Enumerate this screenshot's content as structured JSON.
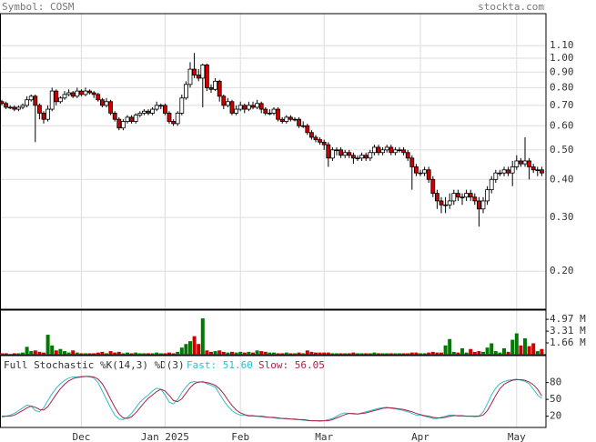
{
  "chart_data": {
    "type": "candlestick",
    "symbol_label": "Symbol: COSM",
    "source": "stockta.com",
    "log_scale": true,
    "grid": true,
    "up_color": "#ffffff",
    "down_color": "#cc0000",
    "volume_up_color": "#007a00",
    "volume_down_color": "#cc0000",
    "ylim": [
      0.15,
      1.4
    ],
    "yticks": [
      {
        "value": 1.1,
        "label": "1.10"
      },
      {
        "value": 1.0,
        "label": "1.00"
      },
      {
        "value": 0.9,
        "label": "0.90"
      },
      {
        "value": 0.8,
        "label": "0.80"
      },
      {
        "value": 0.7,
        "label": "0.70"
      },
      {
        "value": 0.6,
        "label": "0.60"
      },
      {
        "value": 0.5,
        "label": "0.50"
      },
      {
        "value": 0.4,
        "label": "0.40"
      },
      {
        "value": 0.3,
        "label": "0.30"
      },
      {
        "value": 0.2,
        "label": "0.20"
      }
    ],
    "categories": [
      null,
      null,
      null,
      null,
      null,
      null,
      null,
      null,
      null,
      null,
      null,
      null,
      null,
      null,
      null,
      null,
      null,
      null,
      null,
      "Dec",
      null,
      null,
      null,
      null,
      null,
      null,
      null,
      null,
      null,
      null,
      null,
      null,
      null,
      null,
      null,
      null,
      null,
      null,
      null,
      "Jan 2025",
      null,
      null,
      null,
      null,
      null,
      null,
      null,
      null,
      null,
      null,
      null,
      null,
      null,
      null,
      null,
      null,
      null,
      "Feb",
      null,
      null,
      null,
      null,
      null,
      null,
      null,
      null,
      null,
      null,
      null,
      null,
      null,
      null,
      null,
      null,
      null,
      null,
      null,
      "Mar",
      null,
      null,
      null,
      null,
      null,
      null,
      null,
      null,
      null,
      null,
      null,
      null,
      null,
      null,
      null,
      null,
      null,
      null,
      null,
      null,
      null,
      null,
      "Apr",
      null,
      null,
      null,
      null,
      null,
      null,
      null,
      null,
      null,
      null,
      null,
      null,
      null,
      null,
      null,
      null,
      null,
      null,
      null,
      null,
      null,
      null,
      "May",
      null,
      null,
      null,
      null,
      null,
      null
    ],
    "ohlc": [
      [
        0.72,
        0.73,
        0.7,
        0.71
      ],
      [
        0.71,
        0.72,
        0.68,
        0.69
      ],
      [
        0.69,
        0.7,
        0.68,
        0.69
      ],
      [
        0.69,
        0.7,
        0.67,
        0.68
      ],
      [
        0.68,
        0.7,
        0.67,
        0.69
      ],
      [
        0.69,
        0.71,
        0.68,
        0.7
      ],
      [
        0.7,
        0.75,
        0.69,
        0.73
      ],
      [
        0.73,
        0.76,
        0.72,
        0.75
      ],
      [
        0.75,
        0.76,
        0.53,
        0.7
      ],
      [
        0.7,
        0.71,
        0.63,
        0.66
      ],
      [
        0.66,
        0.67,
        0.61,
        0.63
      ],
      [
        0.63,
        0.7,
        0.62,
        0.68
      ],
      [
        0.68,
        0.8,
        0.67,
        0.78
      ],
      [
        0.78,
        0.79,
        0.7,
        0.72
      ],
      [
        0.72,
        0.75,
        0.71,
        0.74
      ],
      [
        0.74,
        0.78,
        0.73,
        0.76
      ],
      [
        0.76,
        0.79,
        0.75,
        0.77
      ],
      [
        0.77,
        0.78,
        0.74,
        0.75
      ],
      [
        0.75,
        0.8,
        0.74,
        0.78
      ],
      [
        0.78,
        0.79,
        0.75,
        0.76
      ],
      [
        0.76,
        0.8,
        0.75,
        0.78
      ],
      [
        0.78,
        0.79,
        0.76,
        0.77
      ],
      [
        0.77,
        0.78,
        0.74,
        0.76
      ],
      [
        0.76,
        0.77,
        0.72,
        0.73
      ],
      [
        0.73,
        0.74,
        0.69,
        0.7
      ],
      [
        0.7,
        0.74,
        0.69,
        0.72
      ],
      [
        0.72,
        0.73,
        0.65,
        0.66
      ],
      [
        0.66,
        0.67,
        0.62,
        0.63
      ],
      [
        0.63,
        0.64,
        0.58,
        0.59
      ],
      [
        0.59,
        0.63,
        0.58,
        0.62
      ],
      [
        0.62,
        0.65,
        0.61,
        0.64
      ],
      [
        0.64,
        0.65,
        0.61,
        0.62
      ],
      [
        0.62,
        0.66,
        0.61,
        0.65
      ],
      [
        0.65,
        0.67,
        0.64,
        0.66
      ],
      [
        0.66,
        0.68,
        0.65,
        0.67
      ],
      [
        0.67,
        0.68,
        0.65,
        0.66
      ],
      [
        0.66,
        0.69,
        0.65,
        0.68
      ],
      [
        0.68,
        0.72,
        0.67,
        0.7
      ],
      [
        0.7,
        0.71,
        0.68,
        0.7
      ],
      [
        0.7,
        0.71,
        0.65,
        0.66
      ],
      [
        0.66,
        0.67,
        0.61,
        0.62
      ],
      [
        0.62,
        0.63,
        0.6,
        0.61
      ],
      [
        0.61,
        0.67,
        0.6,
        0.66
      ],
      [
        0.66,
        0.76,
        0.65,
        0.74
      ],
      [
        0.74,
        0.84,
        0.73,
        0.82
      ],
      [
        0.82,
        0.97,
        0.8,
        0.92
      ],
      [
        0.92,
        1.04,
        0.86,
        0.88
      ],
      [
        0.88,
        0.92,
        0.84,
        0.86
      ],
      [
        0.86,
        0.96,
        0.69,
        0.95
      ],
      [
        0.95,
        0.96,
        0.78,
        0.8
      ],
      [
        0.8,
        0.82,
        0.77,
        0.79
      ],
      [
        0.79,
        0.86,
        0.78,
        0.84
      ],
      [
        0.84,
        0.85,
        0.72,
        0.75
      ],
      [
        0.75,
        0.76,
        0.68,
        0.7
      ],
      [
        0.7,
        0.74,
        0.69,
        0.72
      ],
      [
        0.72,
        0.73,
        0.65,
        0.66
      ],
      [
        0.66,
        0.7,
        0.65,
        0.68
      ],
      [
        0.68,
        0.72,
        0.67,
        0.7
      ],
      [
        0.7,
        0.71,
        0.66,
        0.68
      ],
      [
        0.68,
        0.72,
        0.67,
        0.7
      ],
      [
        0.7,
        0.72,
        0.68,
        0.69
      ],
      [
        0.69,
        0.73,
        0.68,
        0.71
      ],
      [
        0.71,
        0.72,
        0.66,
        0.68
      ],
      [
        0.68,
        0.69,
        0.65,
        0.66
      ],
      [
        0.66,
        0.68,
        0.65,
        0.66
      ],
      [
        0.66,
        0.69,
        0.65,
        0.68
      ],
      [
        0.68,
        0.69,
        0.62,
        0.63
      ],
      [
        0.63,
        0.64,
        0.61,
        0.62
      ],
      [
        0.62,
        0.65,
        0.61,
        0.64
      ],
      [
        0.64,
        0.65,
        0.62,
        0.63
      ],
      [
        0.63,
        0.64,
        0.62,
        0.63
      ],
      [
        0.63,
        0.64,
        0.59,
        0.6
      ],
      [
        0.6,
        0.62,
        0.59,
        0.6
      ],
      [
        0.6,
        0.61,
        0.56,
        0.57
      ],
      [
        0.57,
        0.58,
        0.54,
        0.55
      ],
      [
        0.55,
        0.56,
        0.53,
        0.54
      ],
      [
        0.54,
        0.55,
        0.52,
        0.53
      ],
      [
        0.53,
        0.54,
        0.5,
        0.52
      ],
      [
        0.52,
        0.53,
        0.44,
        0.47
      ],
      [
        0.47,
        0.51,
        0.46,
        0.5
      ],
      [
        0.5,
        0.51,
        0.48,
        0.5
      ],
      [
        0.5,
        0.51,
        0.47,
        0.48
      ],
      [
        0.48,
        0.5,
        0.47,
        0.49
      ],
      [
        0.49,
        0.5,
        0.47,
        0.48
      ],
      [
        0.48,
        0.49,
        0.45,
        0.47
      ],
      [
        0.47,
        0.48,
        0.46,
        0.47
      ],
      [
        0.47,
        0.49,
        0.46,
        0.48
      ],
      [
        0.48,
        0.49,
        0.46,
        0.47
      ],
      [
        0.47,
        0.5,
        0.46,
        0.49
      ],
      [
        0.49,
        0.52,
        0.48,
        0.51
      ],
      [
        0.51,
        0.52,
        0.48,
        0.49
      ],
      [
        0.49,
        0.51,
        0.48,
        0.5
      ],
      [
        0.5,
        0.52,
        0.49,
        0.51
      ],
      [
        0.51,
        0.52,
        0.48,
        0.49
      ],
      [
        0.49,
        0.51,
        0.48,
        0.5
      ],
      [
        0.5,
        0.51,
        0.49,
        0.5
      ],
      [
        0.5,
        0.51,
        0.48,
        0.49
      ],
      [
        0.49,
        0.5,
        0.46,
        0.47
      ],
      [
        0.47,
        0.48,
        0.37,
        0.44
      ],
      [
        0.44,
        0.45,
        0.41,
        0.42
      ],
      [
        0.42,
        0.43,
        0.41,
        0.42
      ],
      [
        0.42,
        0.44,
        0.41,
        0.43
      ],
      [
        0.43,
        0.44,
        0.39,
        0.4
      ],
      [
        0.4,
        0.41,
        0.35,
        0.36
      ],
      [
        0.36,
        0.37,
        0.32,
        0.34
      ],
      [
        0.34,
        0.35,
        0.31,
        0.33
      ],
      [
        0.33,
        0.35,
        0.31,
        0.33
      ],
      [
        0.33,
        0.36,
        0.32,
        0.34
      ],
      [
        0.34,
        0.37,
        0.33,
        0.36
      ],
      [
        0.36,
        0.37,
        0.34,
        0.35
      ],
      [
        0.35,
        0.36,
        0.33,
        0.35
      ],
      [
        0.35,
        0.37,
        0.34,
        0.36
      ],
      [
        0.36,
        0.37,
        0.34,
        0.35
      ],
      [
        0.35,
        0.36,
        0.33,
        0.34
      ],
      [
        0.34,
        0.35,
        0.28,
        0.32
      ],
      [
        0.32,
        0.35,
        0.31,
        0.34
      ],
      [
        0.34,
        0.38,
        0.33,
        0.37
      ],
      [
        0.37,
        0.41,
        0.36,
        0.4
      ],
      [
        0.4,
        0.43,
        0.39,
        0.42
      ],
      [
        0.42,
        0.43,
        0.41,
        0.42
      ],
      [
        0.42,
        0.44,
        0.41,
        0.43
      ],
      [
        0.43,
        0.44,
        0.41,
        0.42
      ],
      [
        0.42,
        0.46,
        0.38,
        0.44
      ],
      [
        0.44,
        0.48,
        0.43,
        0.46
      ],
      [
        0.46,
        0.47,
        0.44,
        0.45
      ],
      [
        0.45,
        0.55,
        0.44,
        0.46
      ],
      [
        0.46,
        0.47,
        0.4,
        0.44
      ],
      [
        0.44,
        0.45,
        0.42,
        0.43
      ],
      [
        0.43,
        0.44,
        0.41,
        0.43
      ],
      [
        0.43,
        0.44,
        0.41,
        0.42
      ]
    ],
    "volume": {
      "ylim": [
        0,
        6.26
      ],
      "yticks": [
        {
          "value": 4.97,
          "label": "4.97 M"
        },
        {
          "value": 3.31,
          "label": "3.31 M"
        },
        {
          "value": 1.66,
          "label": "1.66 M"
        }
      ],
      "values": [
        0.2,
        0.2,
        0.1,
        0.2,
        0.2,
        0.3,
        1.1,
        0.5,
        0.6,
        0.4,
        0.3,
        2.8,
        1.3,
        0.6,
        0.8,
        0.5,
        0.3,
        0.6,
        0.3,
        0.2,
        0.2,
        0.2,
        0.2,
        0.3,
        0.4,
        0.2,
        0.5,
        0.3,
        0.4,
        0.2,
        0.3,
        0.2,
        0.3,
        0.2,
        0.2,
        0.2,
        0.2,
        0.3,
        0.2,
        0.2,
        0.3,
        0.2,
        0.4,
        1.0,
        1.5,
        1.9,
        2.6,
        1.5,
        5.1,
        0.6,
        0.4,
        0.5,
        0.6,
        0.4,
        0.3,
        0.4,
        0.3,
        0.4,
        0.3,
        0.4,
        0.3,
        0.6,
        0.5,
        0.4,
        0.3,
        0.3,
        0.2,
        0.2,
        0.3,
        0.2,
        0.2,
        0.3,
        0.2,
        0.6,
        0.4,
        0.3,
        0.3,
        0.3,
        0.3,
        0.2,
        0.2,
        0.2,
        0.2,
        0.2,
        0.3,
        0.2,
        0.2,
        0.2,
        0.2,
        0.3,
        0.2,
        0.2,
        0.2,
        0.2,
        0.2,
        0.2,
        0.2,
        0.2,
        0.3,
        0.3,
        0.2,
        0.2,
        0.3,
        0.4,
        0.3,
        0.3,
        1.3,
        2.2,
        0.4,
        0.3,
        0.9,
        0.3,
        0.8,
        0.4,
        0.5,
        0.4,
        1.0,
        1.6,
        0.5,
        0.3,
        0.9,
        0.4,
        2.1,
        3.0,
        1.3,
        2.3,
        1.2,
        1.6,
        0.5,
        0.8
      ]
    },
    "stochastic": {
      "title": "Full Stochastic %K(14,3) %D(3)",
      "ylim": [
        0,
        128
      ],
      "yticks": [
        80,
        50,
        20
      ],
      "series": [
        {
          "name": "Fast: 51.60",
          "color": "#33bbcc",
          "values": [
            18,
            20,
            22,
            25,
            30,
            35,
            40,
            38,
            30,
            28,
            35,
            48,
            60,
            70,
            78,
            84,
            88,
            90,
            90,
            91,
            91,
            90,
            88,
            80,
            65,
            50,
            35,
            22,
            15,
            14,
            18,
            25,
            35,
            45,
            52,
            58,
            65,
            70,
            68,
            58,
            45,
            42,
            50,
            62,
            72,
            80,
            82,
            80,
            82,
            78,
            75,
            72,
            60,
            48,
            38,
            30,
            25,
            22,
            22,
            20,
            20,
            20,
            19,
            18,
            18,
            17,
            16,
            16,
            15,
            15,
            14,
            14,
            13,
            12,
            12,
            12,
            11,
            12,
            14,
            16,
            20,
            24,
            26,
            25,
            24,
            24,
            26,
            28,
            30,
            32,
            34,
            35,
            36,
            34,
            33,
            32,
            30,
            28,
            25,
            22,
            22,
            20,
            18,
            16,
            16,
            18,
            20,
            22,
            22,
            20,
            20,
            20,
            20,
            19,
            20,
            28,
            42,
            58,
            70,
            78,
            82,
            84,
            85,
            86,
            84,
            82,
            78,
            68,
            58,
            51.6
          ]
        },
        {
          "name": "Slow: 56.05",
          "color": "#aa2244",
          "values": [
            20,
            20,
            20,
            22,
            26,
            30,
            35,
            38,
            36,
            32,
            31,
            37,
            48,
            59,
            69,
            77,
            83,
            87,
            89,
            90,
            91,
            91,
            90,
            86,
            78,
            65,
            50,
            36,
            24,
            17,
            16,
            19,
            26,
            35,
            44,
            52,
            58,
            64,
            68,
            65,
            57,
            48,
            46,
            51,
            61,
            71,
            78,
            81,
            81,
            80,
            78,
            75,
            69,
            60,
            49,
            39,
            31,
            26,
            23,
            21,
            21,
            20,
            20,
            19,
            18,
            18,
            17,
            16,
            16,
            15,
            15,
            14,
            14,
            13,
            12,
            12,
            12,
            12,
            12,
            14,
            17,
            20,
            23,
            25,
            25,
            24,
            25,
            26,
            28,
            30,
            32,
            34,
            35,
            35,
            34,
            33,
            32,
            30,
            28,
            25,
            23,
            21,
            20,
            18,
            17,
            17,
            18,
            20,
            21,
            21,
            21,
            20,
            20,
            20,
            20,
            22,
            30,
            43,
            57,
            69,
            77,
            81,
            84,
            85,
            85,
            84,
            81,
            76,
            68,
            56.05
          ]
        }
      ]
    }
  }
}
